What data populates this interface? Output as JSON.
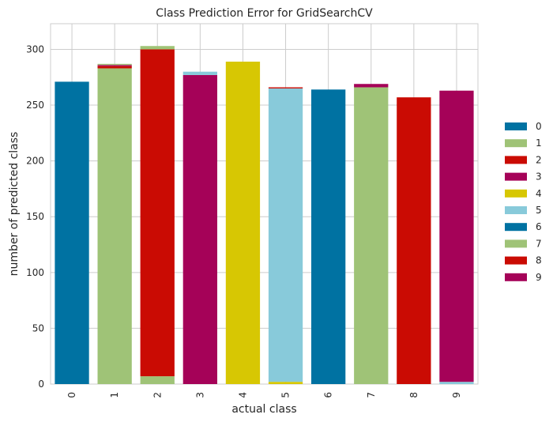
{
  "chart_data": {
    "type": "bar",
    "stacked": true,
    "title": "Class Prediction Error for GridSearchCV",
    "xlabel": "actual class",
    "ylabel": "number of predicted class",
    "categories": [
      "0",
      "1",
      "2",
      "3",
      "4",
      "5",
      "6",
      "7",
      "8",
      "9"
    ],
    "ylim": [
      0,
      323
    ],
    "yticks": [
      0,
      50,
      100,
      150,
      200,
      250,
      300
    ],
    "grid": true,
    "legend_position": "right",
    "series": [
      {
        "name": "0",
        "color": "#0072a2",
        "values": [
          271,
          0,
          0,
          0,
          0,
          0,
          0,
          0,
          0,
          0
        ]
      },
      {
        "name": "1",
        "color": "#9fc377",
        "values": [
          0,
          283,
          7,
          0,
          0,
          0,
          0,
          0,
          0,
          0
        ]
      },
      {
        "name": "2",
        "color": "#ca0b03",
        "values": [
          0,
          2,
          293,
          0,
          0,
          0,
          0,
          0,
          0,
          0
        ]
      },
      {
        "name": "3",
        "color": "#a50258",
        "values": [
          0,
          1,
          0,
          277,
          0,
          0,
          0,
          0,
          0,
          0
        ]
      },
      {
        "name": "4",
        "color": "#d7c703",
        "values": [
          0,
          0,
          0,
          0,
          289,
          2,
          0,
          0,
          0,
          0
        ]
      },
      {
        "name": "5",
        "color": "#88cada",
        "values": [
          0,
          0,
          0,
          3,
          0,
          263,
          0,
          0,
          0,
          0
        ]
      },
      {
        "name": "6",
        "color": "#0072a2",
        "values": [
          0,
          0,
          0,
          0,
          0,
          0,
          264,
          0,
          0,
          0
        ]
      },
      {
        "name": "7",
        "color": "#9fc377",
        "values": [
          0,
          1,
          3,
          0,
          0,
          0,
          0,
          266,
          0,
          0
        ]
      },
      {
        "name": "8",
        "color": "#ca0b03",
        "values": [
          0,
          0,
          0,
          0,
          0,
          1,
          0,
          0,
          257,
          0
        ]
      },
      {
        "name": "9",
        "color": "#a50258",
        "values": [
          0,
          0,
          0,
          0,
          0,
          0,
          0,
          3,
          0,
          261
        ]
      }
    ],
    "extra_segments": [
      {
        "category": "9",
        "color": "#88cada",
        "value": 2,
        "position": "bottom"
      }
    ]
  }
}
